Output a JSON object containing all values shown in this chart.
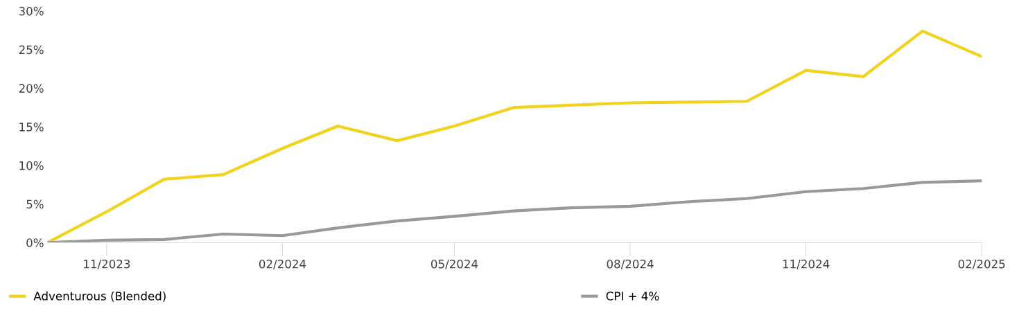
{
  "chart_data": {
    "type": "line",
    "x": [
      "2023-10",
      "2023-11",
      "2023-12",
      "2024-01",
      "2024-02",
      "2024-03",
      "2024-04",
      "2024-05",
      "2024-06",
      "2024-07",
      "2024-08",
      "2024-09",
      "2024-10",
      "2024-11",
      "2024-12",
      "2025-01",
      "2025-02"
    ],
    "series": [
      {
        "name": "Adventurous (Blended)",
        "color": "#f2d21b",
        "values": [
          0,
          4.0,
          8.2,
          8.8,
          12.2,
          15.1,
          13.2,
          15.1,
          17.5,
          17.8,
          18.1,
          18.2,
          18.3,
          22.3,
          21.5,
          27.4,
          24.1
        ]
      },
      {
        "name": "CPI + 4%",
        "color": "#999999",
        "values": [
          0,
          0.3,
          0.4,
          1.1,
          0.9,
          1.9,
          2.8,
          3.4,
          4.1,
          4.5,
          4.7,
          5.3,
          5.7,
          6.6,
          7.0,
          7.8,
          8.0
        ]
      }
    ],
    "xlim": [
      "2023-10",
      "2025-02"
    ],
    "xticks": [
      {
        "value": "2023-11",
        "label": "11/2023"
      },
      {
        "value": "2024-02",
        "label": "02/2024"
      },
      {
        "value": "2024-05",
        "label": "05/2024"
      },
      {
        "value": "2024-08",
        "label": "08/2024"
      },
      {
        "value": "2024-11",
        "label": "11/2024"
      },
      {
        "value": "2025-02",
        "label": "02/2025"
      }
    ],
    "ylim": [
      0,
      30
    ],
    "yticks": [
      {
        "value": 0,
        "label": "0%"
      },
      {
        "value": 5,
        "label": "5%"
      },
      {
        "value": 10,
        "label": "10%"
      },
      {
        "value": 15,
        "label": "15%"
      },
      {
        "value": 20,
        "label": "20%"
      },
      {
        "value": 25,
        "label": "25%"
      },
      {
        "value": 30,
        "label": "30%"
      }
    ],
    "grid": false,
    "legend": "bottom left",
    "marker": "none",
    "line_style": "solid"
  }
}
